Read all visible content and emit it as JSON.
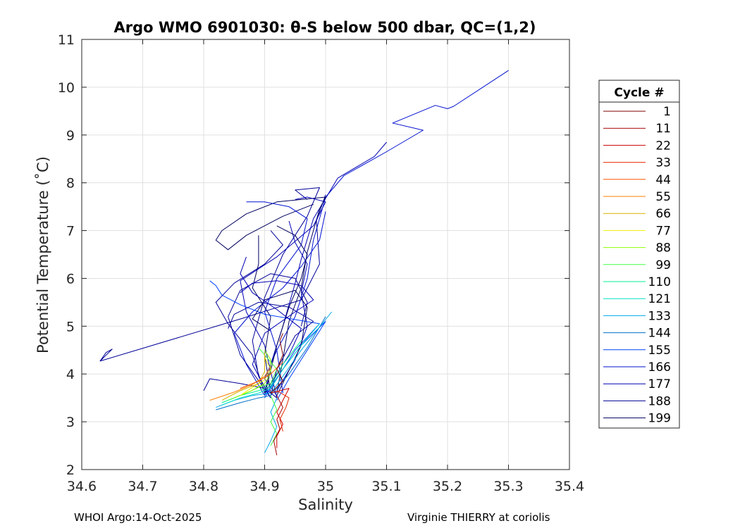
{
  "chart_data": {
    "type": "line",
    "title": "Argo WMO 6901030: θ-S below 500 dbar,  QC=(1,2)",
    "xlabel": "Salinity",
    "ylabel": "Potential Temperature (˚C)",
    "xlim": [
      34.6,
      35.4
    ],
    "ylim": [
      2,
      11
    ],
    "xticks": [
      "34.6",
      "34.7",
      "34.8",
      "34.9",
      "35",
      "35.1",
      "35.2",
      "35.3",
      "35.4"
    ],
    "yticks": [
      "2",
      "3",
      "4",
      "5",
      "6",
      "7",
      "8",
      "9",
      "10",
      "11"
    ],
    "grid": true,
    "legend": {
      "title": "Cycle #",
      "placement": "right",
      "entries": [
        "1",
        "11",
        "22",
        "33",
        "44",
        "55",
        "66",
        "77",
        "88",
        "99",
        "110",
        "121",
        "133",
        "144",
        "155",
        "166",
        "177",
        "188",
        "199"
      ],
      "colors": [
        "#7f0000",
        "#a50000",
        "#cc0000",
        "#e62a00",
        "#ff5500",
        "#ff8000",
        "#d7b400",
        "#f0f000",
        "#8cff00",
        "#40ff40",
        "#00f090",
        "#00e0c8",
        "#00a8e6",
        "#0070c8",
        "#0040ff",
        "#0010d0",
        "#0000b4",
        "#000096",
        "#000060"
      ]
    },
    "series": [
      {
        "color": "#000096",
        "points": [
          [
            34.63,
            4.27
          ],
          [
            34.65,
            4.52
          ],
          [
            34.64,
            4.45
          ],
          [
            34.63,
            4.27
          ],
          [
            34.86,
            5.15
          ],
          [
            34.96,
            5.55
          ],
          [
            34.99,
            6.3
          ],
          [
            34.985,
            7.2
          ],
          [
            35.0,
            7.75
          ]
        ]
      },
      {
        "color": "#0010d0",
        "points": [
          [
            34.92,
            3.55
          ],
          [
            34.9,
            3.9
          ],
          [
            34.92,
            4.5
          ],
          [
            34.95,
            5.2
          ],
          [
            34.97,
            6.0
          ],
          [
            34.98,
            6.8
          ],
          [
            35.0,
            7.7
          ],
          [
            35.03,
            8.15
          ],
          [
            35.1,
            8.65
          ],
          [
            35.16,
            9.1
          ],
          [
            35.11,
            9.25
          ],
          [
            35.18,
            9.62
          ],
          [
            35.2,
            9.55
          ],
          [
            35.21,
            9.6
          ],
          [
            35.3,
            10.35
          ]
        ]
      },
      {
        "color": "#0000b4",
        "points": [
          [
            34.9,
            3.6
          ],
          [
            34.91,
            4.2
          ],
          [
            34.93,
            5.0
          ],
          [
            34.95,
            5.9
          ],
          [
            34.96,
            6.4
          ],
          [
            34.98,
            7.25
          ],
          [
            35.02,
            8.1
          ],
          [
            35.08,
            8.55
          ],
          [
            35.1,
            8.85
          ]
        ]
      },
      {
        "color": "#000096",
        "points": [
          [
            34.91,
            3.5
          ],
          [
            34.89,
            3.95
          ],
          [
            34.88,
            4.7
          ],
          [
            34.9,
            5.6
          ],
          [
            34.93,
            6.5
          ],
          [
            34.97,
            7.3
          ],
          [
            34.99,
            7.9
          ],
          [
            34.95,
            7.85
          ],
          [
            34.97,
            7.65
          ]
        ]
      },
      {
        "color": "#000060",
        "points": [
          [
            34.92,
            3.6
          ],
          [
            34.93,
            4.3
          ],
          [
            34.94,
            5.1
          ],
          [
            34.96,
            5.8
          ],
          [
            34.97,
            6.55
          ],
          [
            34.99,
            7.45
          ],
          [
            35.0,
            7.7
          ],
          [
            34.92,
            7.6
          ],
          [
            34.87,
            7.35
          ],
          [
            34.83,
            7.0
          ],
          [
            34.82,
            6.8
          ],
          [
            34.84,
            6.6
          ],
          [
            34.87,
            6.9
          ],
          [
            34.93,
            7.3
          ],
          [
            34.98,
            7.55
          ]
        ]
      },
      {
        "color": "#0000b4",
        "points": [
          [
            34.92,
            3.5
          ],
          [
            34.9,
            4.6
          ],
          [
            34.87,
            5.3
          ],
          [
            34.86,
            5.95
          ],
          [
            34.92,
            6.45
          ],
          [
            34.98,
            7.1
          ],
          [
            35.0,
            7.6
          ],
          [
            34.97,
            7.7
          ],
          [
            34.95,
            7.65
          ]
        ]
      },
      {
        "color": "#000096",
        "points": [
          [
            34.9,
            3.6
          ],
          [
            34.88,
            4.4
          ],
          [
            34.84,
            5.05
          ],
          [
            34.82,
            5.5
          ],
          [
            34.85,
            5.9
          ],
          [
            34.9,
            6.3
          ],
          [
            34.93,
            6.7
          ],
          [
            34.91,
            7.0
          ]
        ]
      },
      {
        "color": "#0010d0",
        "points": [
          [
            34.9,
            3.55
          ],
          [
            34.87,
            4.2
          ],
          [
            34.85,
            4.85
          ],
          [
            34.88,
            5.3
          ],
          [
            34.93,
            5.8
          ],
          [
            34.96,
            6.25
          ],
          [
            34.99,
            6.8
          ],
          [
            35.0,
            7.4
          ]
        ]
      },
      {
        "color": "#000060",
        "points": [
          [
            34.91,
            3.6
          ],
          [
            34.9,
            4.4
          ],
          [
            34.91,
            5.2
          ],
          [
            34.88,
            5.8
          ],
          [
            34.89,
            6.3
          ],
          [
            34.89,
            6.9
          ]
        ]
      },
      {
        "color": "#0000b4",
        "points": [
          [
            34.92,
            3.65
          ],
          [
            34.95,
            4.3
          ],
          [
            34.97,
            5.0
          ],
          [
            34.96,
            5.7
          ],
          [
            34.97,
            6.3
          ],
          [
            34.95,
            6.75
          ],
          [
            34.94,
            7.2
          ]
        ]
      },
      {
        "color": "#000096",
        "points": [
          [
            34.91,
            3.5
          ],
          [
            34.86,
            4.4
          ],
          [
            34.84,
            5.2
          ],
          [
            34.86,
            5.75
          ],
          [
            34.91,
            6.1
          ],
          [
            34.95,
            6.0
          ],
          [
            34.97,
            5.5
          ],
          [
            34.96,
            5.0
          ]
        ]
      },
      {
        "color": "#0040ff",
        "points": [
          [
            34.9,
            3.5
          ],
          [
            34.95,
            4.5
          ],
          [
            34.99,
            5.05
          ],
          [
            34.9,
            5.25
          ],
          [
            34.86,
            5.45
          ],
          [
            34.83,
            5.65
          ],
          [
            34.82,
            5.85
          ],
          [
            34.81,
            5.95
          ]
        ]
      },
      {
        "color": "#000060",
        "points": [
          [
            34.92,
            3.55
          ],
          [
            34.96,
            4.6
          ],
          [
            34.97,
            5.4
          ],
          [
            34.95,
            5.75
          ],
          [
            34.9,
            5.55
          ],
          [
            34.88,
            5.15
          ],
          [
            34.91,
            4.9
          ]
        ]
      },
      {
        "color": "#0000b4",
        "points": [
          [
            34.9,
            3.6
          ],
          [
            34.94,
            4.4
          ],
          [
            34.96,
            4.95
          ],
          [
            34.92,
            5.35
          ],
          [
            34.88,
            5.7
          ],
          [
            34.86,
            6.1
          ],
          [
            34.87,
            6.45
          ]
        ]
      },
      {
        "color": "#000096",
        "points": [
          [
            34.91,
            3.55
          ],
          [
            34.92,
            4.1
          ],
          [
            34.95,
            4.8
          ],
          [
            34.98,
            5.1
          ],
          [
            34.94,
            5.4
          ],
          [
            34.89,
            5.5
          ],
          [
            34.85,
            5.25
          ],
          [
            34.84,
            4.95
          ]
        ]
      },
      {
        "color": "#0010d0",
        "points": [
          [
            34.93,
            3.6
          ],
          [
            34.92,
            4.5
          ],
          [
            34.9,
            5.3
          ],
          [
            34.92,
            6.0
          ],
          [
            34.96,
            6.7
          ],
          [
            34.97,
            7.25
          ],
          [
            34.94,
            7.5
          ],
          [
            34.9,
            7.6
          ],
          [
            34.87,
            7.6
          ]
        ]
      },
      {
        "color": "#000060",
        "points": [
          [
            34.9,
            3.55
          ],
          [
            34.92,
            4.6
          ],
          [
            34.94,
            5.4
          ],
          [
            34.96,
            6.0
          ],
          [
            34.97,
            6.5
          ],
          [
            34.95,
            6.9
          ],
          [
            34.92,
            7.1
          ]
        ]
      },
      {
        "color": "#0000b4",
        "points": [
          [
            34.91,
            3.5
          ],
          [
            34.88,
            4.2
          ],
          [
            34.9,
            4.85
          ],
          [
            34.95,
            5.3
          ],
          [
            34.98,
            5.55
          ],
          [
            34.96,
            5.85
          ],
          [
            34.92,
            5.95
          ],
          [
            34.88,
            5.9
          ],
          [
            34.86,
            5.7
          ]
        ]
      },
      {
        "color": "#000096",
        "points": [
          [
            34.8,
            3.65
          ],
          [
            34.81,
            3.9
          ],
          [
            34.86,
            3.8
          ],
          [
            34.9,
            3.7
          ],
          [
            34.92,
            3.5
          ]
        ]
      },
      {
        "color": "#0040ff",
        "points": [
          [
            34.92,
            3.45
          ],
          [
            34.94,
            3.9
          ],
          [
            34.97,
            4.5
          ],
          [
            35.0,
            5.1
          ],
          [
            34.96,
            4.6
          ],
          [
            34.93,
            4.1
          ],
          [
            34.9,
            3.55
          ]
        ]
      },
      {
        "color": "#0070c8",
        "points": [
          [
            34.82,
            3.25
          ],
          [
            34.86,
            3.4
          ],
          [
            34.89,
            3.5
          ],
          [
            34.91,
            3.55
          ],
          [
            34.94,
            4.0
          ],
          [
            34.97,
            4.55
          ],
          [
            35.0,
            5.2
          ]
        ]
      },
      {
        "color": "#00a8e6",
        "points": [
          [
            34.82,
            3.3
          ],
          [
            34.85,
            3.45
          ],
          [
            34.88,
            3.55
          ],
          [
            34.91,
            3.6
          ],
          [
            34.93,
            3.95
          ],
          [
            34.96,
            4.5
          ],
          [
            35.01,
            5.3
          ]
        ]
      },
      {
        "color": "#00e0c8",
        "points": [
          [
            34.83,
            3.35
          ],
          [
            34.86,
            3.5
          ],
          [
            34.89,
            3.6
          ],
          [
            34.91,
            3.7
          ],
          [
            34.93,
            4.1
          ],
          [
            34.96,
            4.6
          ],
          [
            34.99,
            5.05
          ]
        ]
      },
      {
        "color": "#00f090",
        "points": [
          [
            34.83,
            3.4
          ],
          [
            34.86,
            3.55
          ],
          [
            34.89,
            3.65
          ],
          [
            34.91,
            3.75
          ],
          [
            34.93,
            4.2
          ],
          [
            34.96,
            4.7
          ]
        ]
      },
      {
        "color": "#40ff40",
        "points": [
          [
            34.84,
            3.45
          ],
          [
            34.87,
            3.6
          ],
          [
            34.89,
            3.72
          ],
          [
            34.91,
            3.8
          ],
          [
            34.92,
            4.1
          ],
          [
            34.9,
            4.4
          ],
          [
            34.89,
            4.55
          ]
        ]
      },
      {
        "color": "#8cff00",
        "points": [
          [
            34.85,
            3.5
          ],
          [
            34.88,
            3.66
          ],
          [
            34.9,
            3.8
          ],
          [
            34.91,
            4.0
          ],
          [
            34.91,
            4.3
          ],
          [
            34.9,
            4.5
          ]
        ]
      },
      {
        "color": "#f0f000",
        "points": [
          [
            34.86,
            3.55
          ],
          [
            34.88,
            3.72
          ],
          [
            34.9,
            3.88
          ],
          [
            34.91,
            4.1
          ],
          [
            34.9,
            4.35
          ]
        ]
      },
      {
        "color": "#d7b400",
        "points": [
          [
            34.83,
            3.45
          ],
          [
            34.86,
            3.65
          ],
          [
            34.89,
            3.8
          ],
          [
            34.9,
            4.05
          ],
          [
            34.9,
            4.45
          ]
        ]
      },
      {
        "color": "#ff8000",
        "points": [
          [
            34.81,
            3.45
          ],
          [
            34.85,
            3.62
          ],
          [
            34.88,
            3.78
          ],
          [
            34.9,
            3.95
          ],
          [
            34.91,
            4.15
          ]
        ]
      },
      {
        "color": "#ff5500",
        "points": [
          [
            34.86,
            3.7
          ],
          [
            34.89,
            3.85
          ],
          [
            34.91,
            4.0
          ],
          [
            34.93,
            4.25
          ]
        ]
      },
      {
        "color": "#00a8e6",
        "points": [
          [
            34.92,
            3.5
          ],
          [
            34.91,
            3.2
          ],
          [
            34.92,
            2.9
          ],
          [
            34.91,
            2.6
          ],
          [
            34.9,
            2.35
          ]
        ]
      },
      {
        "color": "#40ff40",
        "points": [
          [
            34.91,
            3.55
          ],
          [
            34.92,
            3.25
          ],
          [
            34.91,
            3.0
          ],
          [
            34.92,
            2.75
          ],
          [
            34.91,
            2.5
          ]
        ]
      },
      {
        "color": "#cc0000",
        "points": [
          [
            34.91,
            3.6
          ],
          [
            34.94,
            3.7
          ],
          [
            34.93,
            3.45
          ],
          [
            34.92,
            3.2
          ],
          [
            34.93,
            2.95
          ],
          [
            34.92,
            2.7
          ],
          [
            34.92,
            2.45
          ]
        ]
      },
      {
        "color": "#a50000",
        "points": [
          [
            34.92,
            3.55
          ],
          [
            34.93,
            3.3
          ],
          [
            34.92,
            3.05
          ],
          [
            34.925,
            2.85
          ],
          [
            34.915,
            2.6
          ],
          [
            34.92,
            2.3
          ]
        ]
      },
      {
        "color": "#7f0000",
        "points": [
          [
            34.91,
            3.6
          ],
          [
            34.93,
            3.85
          ],
          [
            34.92,
            4.1
          ],
          [
            34.93,
            4.4
          ],
          [
            34.925,
            4.7
          ],
          [
            34.93,
            4.85
          ]
        ]
      },
      {
        "color": "#e62a00",
        "points": [
          [
            34.92,
            3.65
          ],
          [
            34.94,
            3.5
          ],
          [
            34.935,
            3.3
          ],
          [
            34.925,
            3.05
          ],
          [
            34.93,
            2.8
          ]
        ]
      }
    ]
  },
  "footer": {
    "left": "WHOI Argo:14-Oct-2025",
    "right": "Virginie THIERRY at coriolis"
  }
}
